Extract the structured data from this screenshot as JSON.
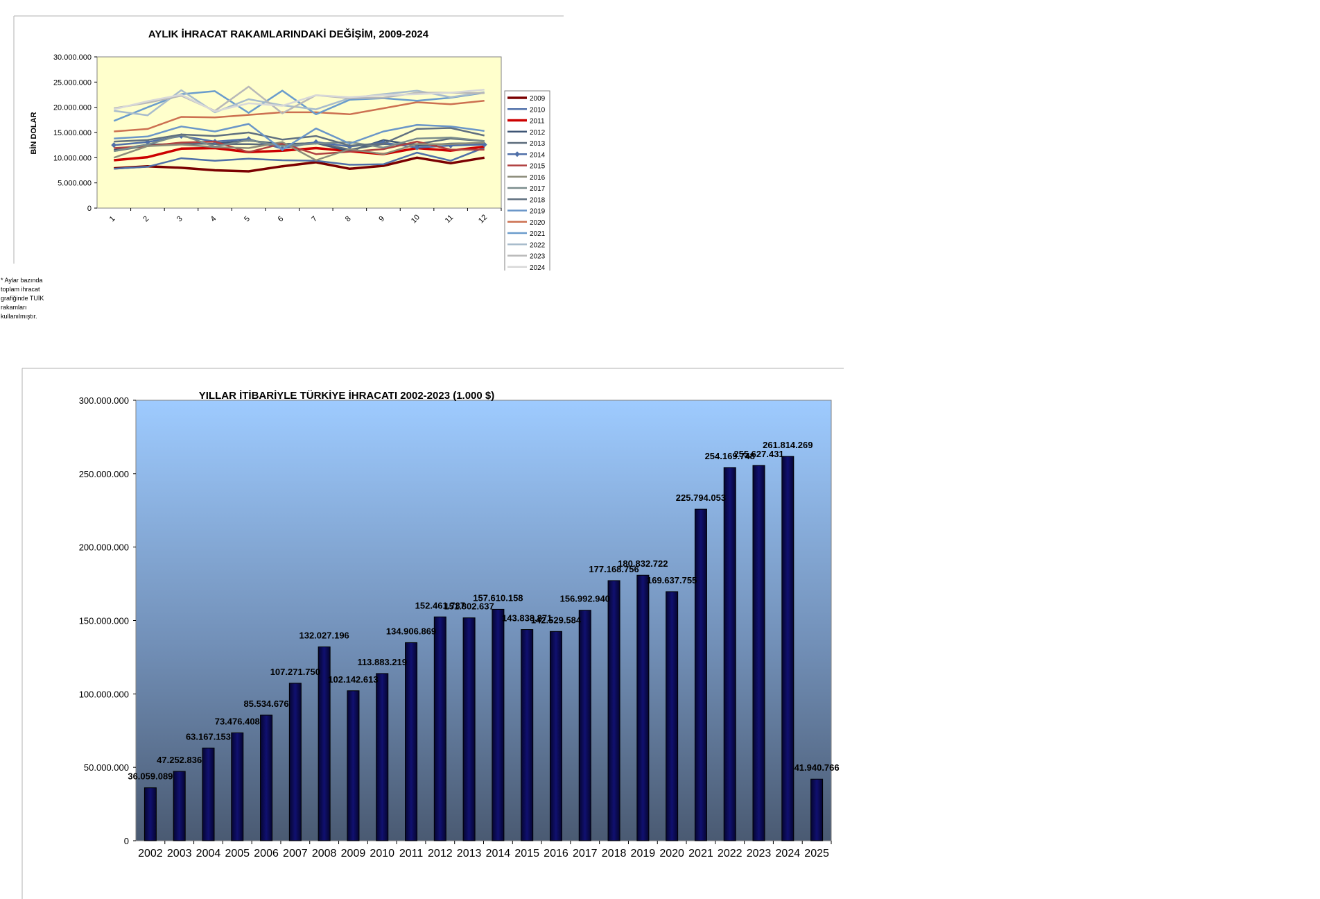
{
  "monthly_chart": {
    "title": "AYLIK İHRACAT RAKAMLARINDAKİ DEĞİŞİM, 2009-2024",
    "ylabel": "BİN DOLAR",
    "y_ticks": [
      "0",
      "5.000.000",
      "10.000.000",
      "15.000.000",
      "20.000.000",
      "25.000.000",
      "30.000.000"
    ],
    "x_ticks": [
      "1",
      "2",
      "3",
      "4",
      "5",
      "6",
      "7",
      "8",
      "9",
      "10",
      "11",
      "12"
    ]
  },
  "note": "* Aylar bazında toplam ihracat grafiğinde TUİK rakamları kullanılmıştır.",
  "annual_chart": {
    "title": "YILLAR İTİBARİYLE TÜRKİYE İHRACATI 2002-2023 (1.000 $)",
    "y_ticks": [
      "0",
      "50.000.000",
      "100.000.000",
      "150.000.000",
      "200.000.000",
      "250.000.000",
      "300.000.000"
    ]
  },
  "chart_data": [
    {
      "type": "line",
      "title": "AYLIK İHRACAT RAKAMLARINDAKİ DEĞİŞİM, 2009-2024",
      "xlabel": "",
      "ylabel": "BİN DOLAR",
      "ylim": [
        0,
        30000000
      ],
      "grid": false,
      "legend": "right",
      "plot_background": "#ffffcc",
      "x": [
        1,
        2,
        3,
        4,
        5,
        6,
        7,
        8,
        9,
        10,
        11,
        12
      ],
      "series": [
        {
          "name": "2009",
          "color": "#7b0000",
          "values": [
            7900000,
            8300000,
            8000000,
            7500000,
            7300000,
            8300000,
            9100000,
            7800000,
            8400000,
            10000000,
            8900000,
            10000000
          ]
        },
        {
          "name": "2010",
          "color": "#4f6fa8",
          "values": [
            7800000,
            8200000,
            9900000,
            9400000,
            9800000,
            9500000,
            9400000,
            8600000,
            8700000,
            11000000,
            9400000,
            12000000
          ]
        },
        {
          "name": "2011",
          "color": "#cc0000",
          "values": [
            9500000,
            10100000,
            11800000,
            11900000,
            11100000,
            11400000,
            11900000,
            11300000,
            10700000,
            11900000,
            11400000,
            12200000
          ]
        },
        {
          "name": "2012",
          "color": "#3e5575",
          "values": [
            11500000,
            12600000,
            12700000,
            12800000,
            13400000,
            12700000,
            12900000,
            11300000,
            13500000,
            12400000,
            12800000,
            12900000
          ]
        },
        {
          "name": "2013",
          "color": "#5b6b7b",
          "values": [
            11300000,
            12400000,
            12900000,
            12700000,
            12700000,
            12500000,
            13000000,
            11600000,
            12700000,
            12700000,
            13800000,
            13300000
          ]
        },
        {
          "name": "2014",
          "color": "#4f6fa8",
          "values": [
            12500000,
            13100000,
            14300000,
            13200000,
            13700000,
            11800000,
            13100000,
            12200000,
            13000000,
            12000000,
            12400000,
            12600000
          ]
        },
        {
          "name": "2015",
          "color": "#b04040",
          "values": [
            11900000,
            12300000,
            13000000,
            13200000,
            11100000,
            12800000,
            10700000,
            11200000,
            11700000,
            13200000,
            11600000,
            11600000
          ]
        },
        {
          "name": "2016",
          "color": "#8c8c7a",
          "values": [
            10000000,
            12300000,
            12600000,
            12100000,
            11900000,
            13100000,
            9500000,
            11700000,
            10700000,
            12700000,
            12700000,
            13000000
          ]
        },
        {
          "name": "2017",
          "color": "#7a8c8c",
          "values": [
            11300000,
            12600000,
            14500000,
            12200000,
            13500000,
            12300000,
            12800000,
            13100000,
            12000000,
            13800000,
            14000000,
            13300000
          ]
        },
        {
          "name": "2018",
          "color": "#607080",
          "values": [
            13200000,
            13500000,
            14600000,
            14300000,
            15000000,
            13600000,
            14300000,
            12400000,
            12800000,
            15700000,
            15900000,
            14400000
          ]
        },
        {
          "name": "2019",
          "color": "#6a96c8",
          "values": [
            13800000,
            14200000,
            16200000,
            15200000,
            16700000,
            11600000,
            15800000,
            12800000,
            15200000,
            16500000,
            16200000,
            15300000
          ]
        },
        {
          "name": "2020",
          "color": "#cc7050",
          "values": [
            15200000,
            15700000,
            18100000,
            18000000,
            18500000,
            19000000,
            19000000,
            18600000,
            19800000,
            21000000,
            20600000,
            21300000
          ]
        },
        {
          "name": "2021",
          "color": "#6a9ccc",
          "values": [
            17300000,
            20000000,
            22600000,
            23200000,
            18900000,
            23300000,
            18600000,
            21500000,
            21800000,
            21300000,
            21900000,
            22900000
          ]
        },
        {
          "name": "2022",
          "color": "#a8bccc",
          "values": [
            19300000,
            18400000,
            23400000,
            19000000,
            21600000,
            20400000,
            19600000,
            21800000,
            22600000,
            23300000,
            22000000,
            23000000
          ]
        },
        {
          "name": "2023",
          "color": "#b8b8b8",
          "values": [
            19800000,
            20900000,
            22300000,
            19300000,
            24100000,
            18800000,
            22400000,
            21800000,
            21900000,
            22900000,
            22900000,
            22800000
          ]
        },
        {
          "name": "2024",
          "color": "#d8d8d8",
          "values": [
            19600000,
            21200000,
            22500000,
            19200000,
            20800000,
            20300000,
            22400000,
            22000000,
            22400000,
            22600000,
            22900000,
            23500000
          ]
        }
      ]
    },
    {
      "type": "bar",
      "title": "YILLAR İTİBARİYLE TÜRKİYE İHRACATI 2002-2023 (1.000 $)",
      "xlabel": "",
      "ylabel": "",
      "ylim": [
        0,
        300000000
      ],
      "grid": false,
      "bar_color": "#0a0a5a",
      "background_top": "#9ecbff",
      "background_bottom": "#4a5a72",
      "categories": [
        "2002",
        "2003",
        "2004",
        "2005",
        "2006",
        "2007",
        "2008",
        "2009",
        "2010",
        "2011",
        "2012",
        "2013",
        "2014",
        "2015",
        "2016",
        "2017",
        "2018",
        "2019",
        "2020",
        "2021",
        "2022",
        "2023",
        "2024",
        "2025"
      ],
      "values": [
        36059089,
        47252836,
        63167153,
        73476408,
        85534676,
        107271750,
        132027196,
        102142613,
        113883219,
        134906869,
        152461737,
        151802637,
        157610158,
        143838871,
        142529584,
        156992940,
        177168756,
        180832722,
        169637755,
        225794053,
        254169748,
        255627431,
        261814269,
        41940766
      ],
      "labels": [
        "36.059.089",
        "47.252.836",
        "63.167.153",
        "73.476.408",
        "85.534.676",
        "107.271.750",
        "132.027.196",
        "102.142.613",
        "113.883.219",
        "134.906.869",
        "152.461.737",
        "151.802.637",
        "157.610.158",
        "143.838.871",
        "142.529.584",
        "156.992.940",
        "177.168.756",
        "180.832.722",
        "169.637.755",
        "225.794.053",
        "254.169.748",
        "255.627.431",
        "261.814.269",
        "41.940.766"
      ]
    }
  ]
}
